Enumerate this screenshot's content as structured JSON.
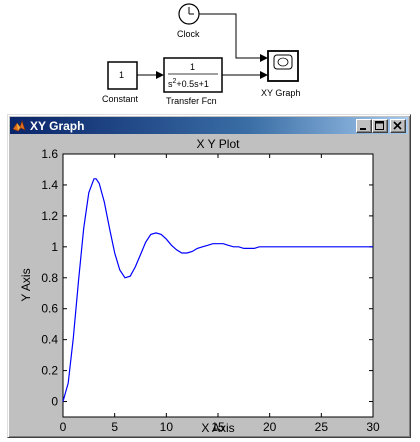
{
  "diagram": {
    "clock": {
      "label": "Clock"
    },
    "constant": {
      "label": "Constant",
      "value": "1"
    },
    "transfer_fcn": {
      "label": "Transfer Fcn",
      "numerator": "1",
      "denominator_prefix": "s",
      "denominator_exponent": "2",
      "denominator_suffix": "+0.5s+1"
    },
    "xy_graph": {
      "label": "XY Graph"
    }
  },
  "window": {
    "title": "XY Graph",
    "minimize_icon": "minimize-icon",
    "maximize_icon": "maximize-icon",
    "close_icon": "close-icon",
    "app_icon": "matlab-icon"
  },
  "chart_data": {
    "type": "line",
    "title": "X Y Plot",
    "xlabel": "X Axis",
    "ylabel": "Y Axis",
    "xlim": [
      0,
      30
    ],
    "ylim": [
      -0.1,
      1.6
    ],
    "xticks": [
      "0",
      "5",
      "10",
      "15",
      "20",
      "25",
      "30"
    ],
    "yticks": [
      "0",
      "0.2",
      "0.4",
      "0.6",
      "0.8",
      "1",
      "1.2",
      "1.4",
      "1.6"
    ],
    "grid": false,
    "series": [
      {
        "color": "#0000ff",
        "x": [
          0,
          0.5,
          1,
          1.5,
          2,
          2.5,
          3,
          3.2,
          3.5,
          4,
          4.5,
          5,
          5.5,
          6,
          6.5,
          7,
          7.5,
          8,
          8.5,
          9,
          9.5,
          10,
          10.5,
          11,
          11.5,
          12,
          12.5,
          13,
          13.5,
          14,
          14.5,
          15,
          15.5,
          16,
          16.5,
          17,
          17.5,
          18,
          18.5,
          19,
          19.5,
          20,
          21,
          22,
          23,
          24,
          25,
          26,
          27,
          28,
          29,
          30
        ],
        "y": [
          0,
          0.12,
          0.41,
          0.78,
          1.12,
          1.35,
          1.44,
          1.44,
          1.41,
          1.29,
          1.12,
          0.96,
          0.85,
          0.8,
          0.81,
          0.87,
          0.95,
          1.03,
          1.08,
          1.09,
          1.08,
          1.05,
          1.01,
          0.98,
          0.96,
          0.96,
          0.97,
          0.99,
          1.0,
          1.01,
          1.02,
          1.02,
          1.02,
          1.01,
          1.0,
          1.0,
          0.99,
          0.99,
          0.99,
          1.0,
          1.0,
          1.0,
          1.0,
          1.0,
          1.0,
          1.0,
          1.0,
          1.0,
          1.0,
          1.0,
          1.0,
          1.0
        ]
      }
    ]
  }
}
